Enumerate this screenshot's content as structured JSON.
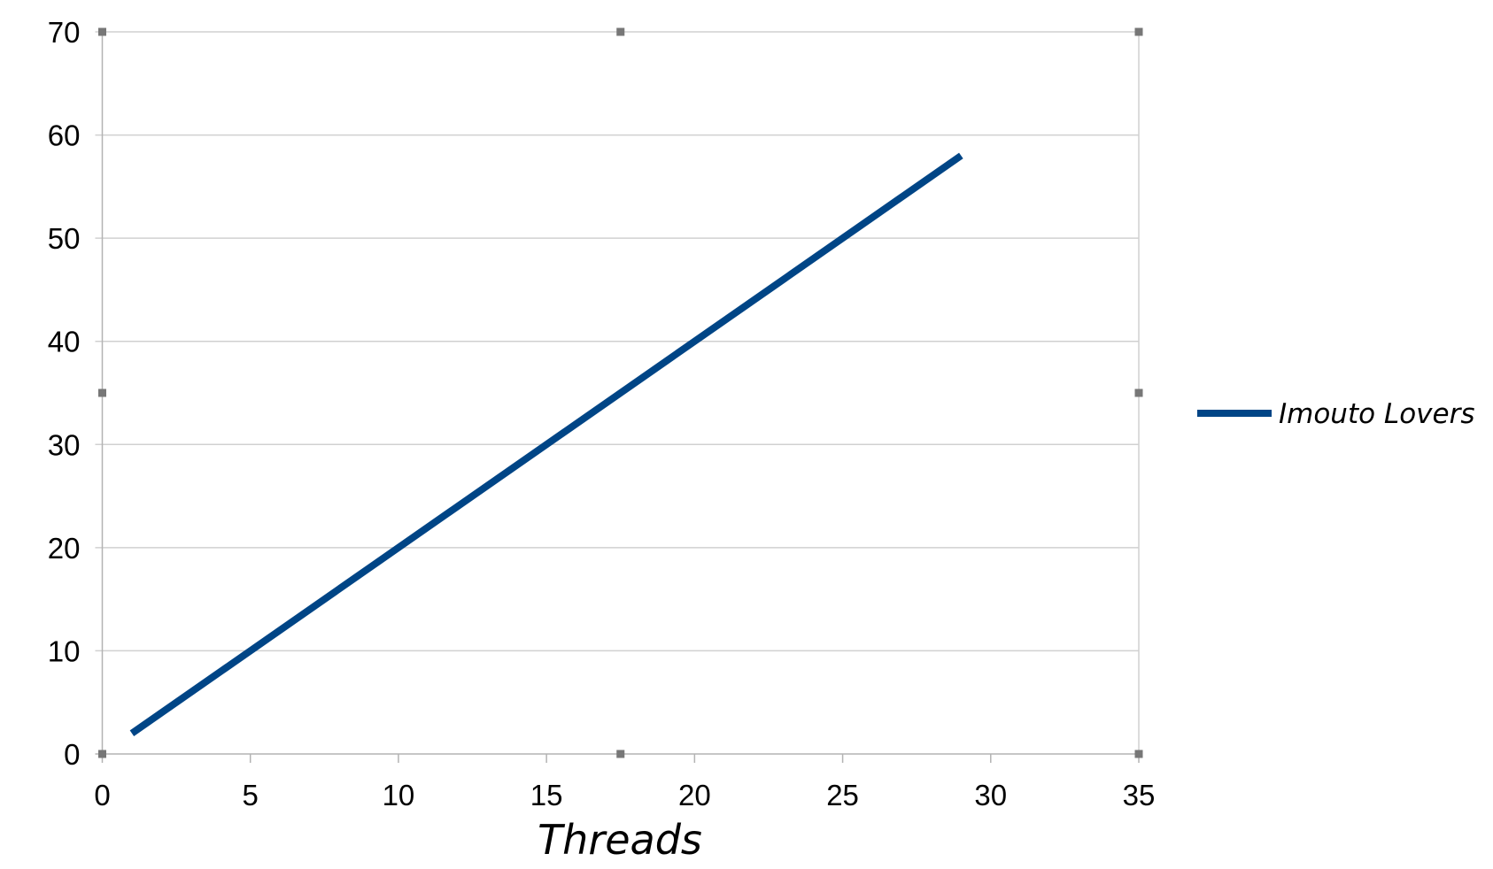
{
  "chart_data": {
    "type": "line",
    "title": "",
    "xlabel": "Threads",
    "ylabel": "",
    "xlim": [
      0,
      35
    ],
    "ylim": [
      0,
      70
    ],
    "xticks": [
      0,
      5,
      10,
      15,
      20,
      25,
      30,
      35
    ],
    "yticks": [
      0,
      10,
      20,
      30,
      40,
      50,
      60,
      70
    ],
    "grid": "horizontal",
    "legend": "right",
    "series": [
      {
        "name": "Imouto Lovers",
        "color": "#004586",
        "x": [
          1,
          29
        ],
        "y": [
          2,
          58
        ]
      }
    ]
  }
}
